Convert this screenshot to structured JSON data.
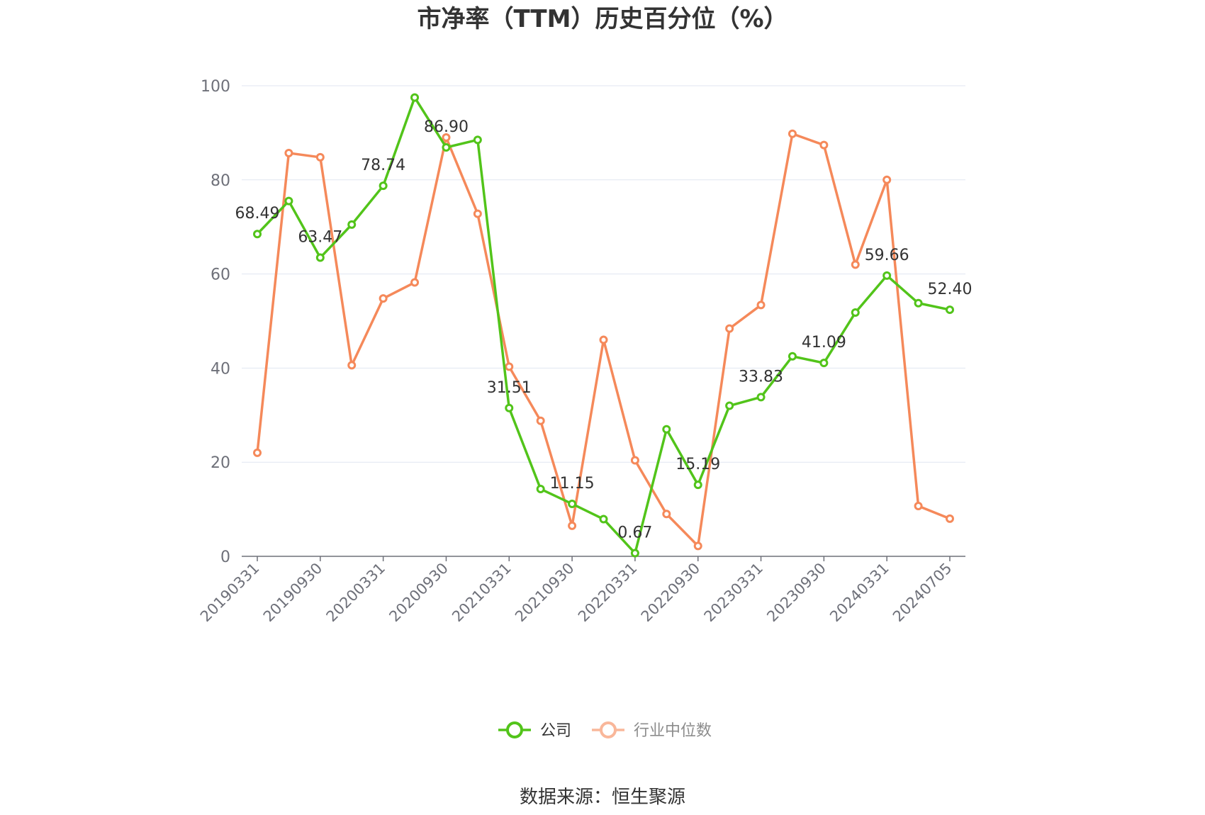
{
  "chart_data": {
    "type": "line",
    "title": "市净率（TTM）历史百分位（%）",
    "source": "数据来源：恒生聚源",
    "ylim": [
      0,
      100
    ],
    "yticks": [
      "0",
      "20",
      "40",
      "60",
      "80",
      "100"
    ],
    "grid": true,
    "legend_position": "bottom-center",
    "x": [
      "20190331",
      "20190630",
      "20190930",
      "20191231",
      "20200331",
      "20200630",
      "20200930",
      "20201231",
      "20210331",
      "20210630",
      "20210930",
      "20211231",
      "20220331",
      "20220630",
      "20220930",
      "20221231",
      "20230331",
      "20230630",
      "20230930",
      "20231231",
      "20240331",
      "20240630",
      "20240705"
    ],
    "xtick_labels": [
      "20190331",
      "20190930",
      "20200331",
      "20200930",
      "20210331",
      "20210930",
      "20220331",
      "20220930",
      "20230331",
      "20230930",
      "20240331",
      "20240705"
    ],
    "series": [
      {
        "name": "公司",
        "color": "#52c41a",
        "values": [
          68.49,
          75.5,
          63.47,
          70.5,
          78.74,
          97.5,
          86.9,
          88.5,
          31.51,
          14.3,
          11.15,
          7.9,
          0.67,
          27.0,
          15.19,
          32.0,
          33.83,
          42.5,
          41.09,
          51.8,
          59.66,
          53.8,
          52.4
        ],
        "data_labels": [
          "68.49",
          "",
          "63.47",
          "",
          "78.74",
          "",
          "86.90",
          "",
          "31.51",
          "",
          "11.15",
          "",
          "0.67",
          "",
          "15.19",
          "",
          "33.83",
          "",
          "41.09",
          "",
          "59.66",
          "",
          "52.40"
        ]
      },
      {
        "name": "行业中位数",
        "color": "#f5895a",
        "values": [
          22.0,
          85.7,
          84.8,
          40.6,
          54.8,
          58.2,
          89.0,
          72.8,
          40.3,
          28.8,
          6.5,
          46.0,
          20.4,
          9.0,
          2.2,
          48.4,
          53.4,
          89.8,
          87.4,
          62.0,
          80.0,
          10.7,
          8.0
        ]
      }
    ]
  }
}
